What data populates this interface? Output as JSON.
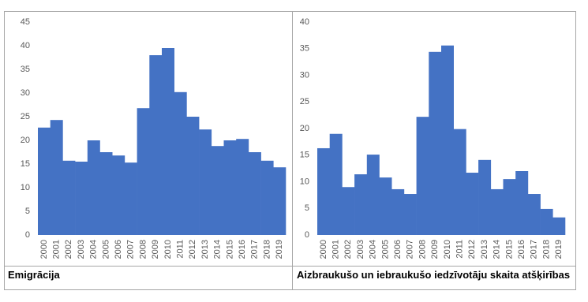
{
  "chart_data": [
    {
      "type": "bar",
      "caption": "Emigrācija",
      "categories": [
        "2000",
        "2001",
        "2002",
        "2003",
        "2004",
        "2005",
        "2006",
        "2007",
        "2008",
        "2009",
        "2010",
        "2011",
        "2012",
        "2013",
        "2014",
        "2015",
        "2016",
        "2017",
        "2018",
        "2019"
      ],
      "values": [
        22.7,
        24.3,
        15.7,
        15.5,
        20.0,
        17.5,
        16.8,
        15.3,
        26.8,
        38.0,
        39.5,
        30.2,
        25.0,
        22.3,
        18.8,
        20.0,
        20.3,
        17.5,
        15.7,
        14.3
      ],
      "color": "#4472c4",
      "ylim": [
        0,
        45
      ],
      "yticks": [
        0,
        5,
        10,
        15,
        20,
        25,
        30,
        35,
        40,
        45
      ]
    },
    {
      "type": "bar",
      "caption": "Aizbraukušo un iebraukušo iedzīvotāju skaita atšķirības",
      "categories": [
        "2000",
        "2001",
        "2002",
        "2003",
        "2004",
        "2005",
        "2006",
        "2007",
        "2008",
        "2009",
        "2010",
        "2011",
        "2012",
        "2013",
        "2014",
        "2015",
        "2016",
        "2017",
        "2018",
        "2019"
      ],
      "values": [
        16.3,
        19.0,
        9.0,
        11.4,
        15.1,
        10.8,
        8.6,
        7.7,
        22.2,
        34.4,
        35.6,
        19.9,
        11.7,
        14.1,
        8.6,
        10.5,
        12.0,
        7.7,
        4.9,
        3.3
      ],
      "color": "#4472c4",
      "ylim": [
        0,
        40
      ],
      "yticks": [
        0,
        5,
        10,
        15,
        20,
        25,
        30,
        35,
        40
      ]
    }
  ]
}
